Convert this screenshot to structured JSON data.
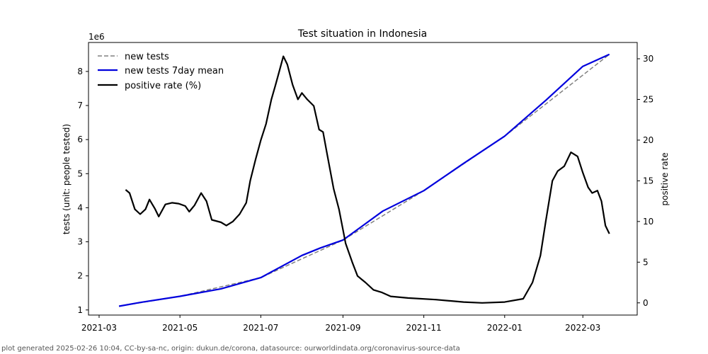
{
  "chart_data": {
    "type": "line",
    "title": "Test situation in Indonesia",
    "offset_label": "1e6",
    "ylabel_left": "tests (unit: people tested)",
    "ylabel_right": "positive rate",
    "x_ticks": [
      "2021-03",
      "2021-05",
      "2021-07",
      "2021-09",
      "2021-11",
      "2022-01",
      "2022-03"
    ],
    "y_left_ticks": [
      1,
      2,
      3,
      4,
      5,
      6,
      7,
      8
    ],
    "y_right_ticks": [
      0,
      5,
      10,
      15,
      20,
      25,
      30
    ],
    "x_range": [
      "2021-02-21",
      "2022-04-11"
    ],
    "y_left_range": [
      0.85,
      8.85
    ],
    "y_right_range": [
      -1.5,
      32.0
    ],
    "legend_position": "upper-left",
    "grid": false,
    "series": [
      {
        "name": "new tests",
        "axis": "left",
        "style": "dashed",
        "color": "#808080",
        "points": [
          [
            "2021-03-16",
            1.11
          ],
          [
            "2021-05-01",
            1.4
          ],
          [
            "2021-07-01",
            1.95
          ],
          [
            "2021-09-01",
            3.05
          ],
          [
            "2021-11-01",
            4.5
          ],
          [
            "2022-01-01",
            6.1
          ],
          [
            "2022-03-21",
            8.5
          ]
        ]
      },
      {
        "name": "new tests 7day mean",
        "axis": "left",
        "style": "solid",
        "color": "#0000dd",
        "points": [
          [
            "2021-03-16",
            1.11
          ],
          [
            "2021-04-01",
            1.22
          ],
          [
            "2021-05-01",
            1.4
          ],
          [
            "2021-06-01",
            1.62
          ],
          [
            "2021-07-01",
            1.95
          ],
          [
            "2021-08-01",
            2.6
          ],
          [
            "2021-08-15",
            2.82
          ],
          [
            "2021-09-01",
            3.05
          ],
          [
            "2021-10-01",
            3.9
          ],
          [
            "2021-11-01",
            4.5
          ],
          [
            "2021-12-01",
            5.3
          ],
          [
            "2022-01-01",
            6.1
          ],
          [
            "2022-02-01",
            7.15
          ],
          [
            "2022-03-01",
            8.15
          ],
          [
            "2022-03-21",
            8.5
          ]
        ]
      },
      {
        "name": "positive rate (%)",
        "axis": "right",
        "style": "solid",
        "color": "#000000",
        "points": [
          [
            "2021-03-21",
            13.9
          ],
          [
            "2021-03-24",
            13.5
          ],
          [
            "2021-03-28",
            11.5
          ],
          [
            "2021-04-01",
            10.9
          ],
          [
            "2021-04-05",
            11.5
          ],
          [
            "2021-04-08",
            12.7
          ],
          [
            "2021-04-12",
            11.6
          ],
          [
            "2021-04-15",
            10.6
          ],
          [
            "2021-04-20",
            12.1
          ],
          [
            "2021-04-25",
            12.3
          ],
          [
            "2021-04-30",
            12.2
          ],
          [
            "2021-05-05",
            11.9
          ],
          [
            "2021-05-08",
            11.2
          ],
          [
            "2021-05-12",
            12.0
          ],
          [
            "2021-05-17",
            13.5
          ],
          [
            "2021-05-21",
            12.5
          ],
          [
            "2021-05-25",
            10.2
          ],
          [
            "2021-06-01",
            9.9
          ],
          [
            "2021-06-05",
            9.5
          ],
          [
            "2021-06-10",
            10.0
          ],
          [
            "2021-06-15",
            10.9
          ],
          [
            "2021-06-20",
            12.3
          ],
          [
            "2021-06-23",
            15.0
          ],
          [
            "2021-06-27",
            17.6
          ],
          [
            "2021-07-01",
            20.0
          ],
          [
            "2021-07-05",
            22.0
          ],
          [
            "2021-07-09",
            25.0
          ],
          [
            "2021-07-12",
            26.7
          ],
          [
            "2021-07-15",
            28.5
          ],
          [
            "2021-07-18",
            30.3
          ],
          [
            "2021-07-21",
            29.3
          ],
          [
            "2021-07-25",
            26.8
          ],
          [
            "2021-07-29",
            25.0
          ],
          [
            "2021-08-01",
            25.8
          ],
          [
            "2021-08-05",
            25.0
          ],
          [
            "2021-08-10",
            24.2
          ],
          [
            "2021-08-14",
            21.3
          ],
          [
            "2021-08-17",
            21.0
          ],
          [
            "2021-08-20",
            18.3
          ],
          [
            "2021-08-25",
            14.0
          ],
          [
            "2021-08-29",
            11.5
          ],
          [
            "2021-09-01",
            9.0
          ],
          [
            "2021-09-03",
            7.3
          ],
          [
            "2021-09-08",
            5.0
          ],
          [
            "2021-09-12",
            3.3
          ],
          [
            "2021-09-18",
            2.5
          ],
          [
            "2021-09-24",
            1.6
          ],
          [
            "2021-09-30",
            1.3
          ],
          [
            "2021-10-07",
            0.8
          ],
          [
            "2021-10-20",
            0.6
          ],
          [
            "2021-11-10",
            0.4
          ],
          [
            "2021-12-01",
            0.1
          ],
          [
            "2021-12-15",
            0.0
          ],
          [
            "2022-01-01",
            0.1
          ],
          [
            "2022-01-15",
            0.5
          ],
          [
            "2022-01-22",
            2.5
          ],
          [
            "2022-01-28",
            5.8
          ],
          [
            "2022-02-01",
            10.0
          ],
          [
            "2022-02-06",
            15.0
          ],
          [
            "2022-02-10",
            16.2
          ],
          [
            "2022-02-15",
            16.8
          ],
          [
            "2022-02-20",
            18.5
          ],
          [
            "2022-02-25",
            18.0
          ],
          [
            "2022-03-01",
            16.0
          ],
          [
            "2022-03-05",
            14.2
          ],
          [
            "2022-03-08",
            13.5
          ],
          [
            "2022-03-12",
            13.8
          ],
          [
            "2022-03-15",
            12.5
          ],
          [
            "2022-03-18",
            9.5
          ],
          [
            "2022-03-21",
            8.5
          ]
        ]
      }
    ]
  },
  "footer": "plot generated 2025-02-26 10:04, CC-by-sa-nc, origin: dukun.de/corona, datasource: ourworldindata.org/coronavirus-source-data"
}
